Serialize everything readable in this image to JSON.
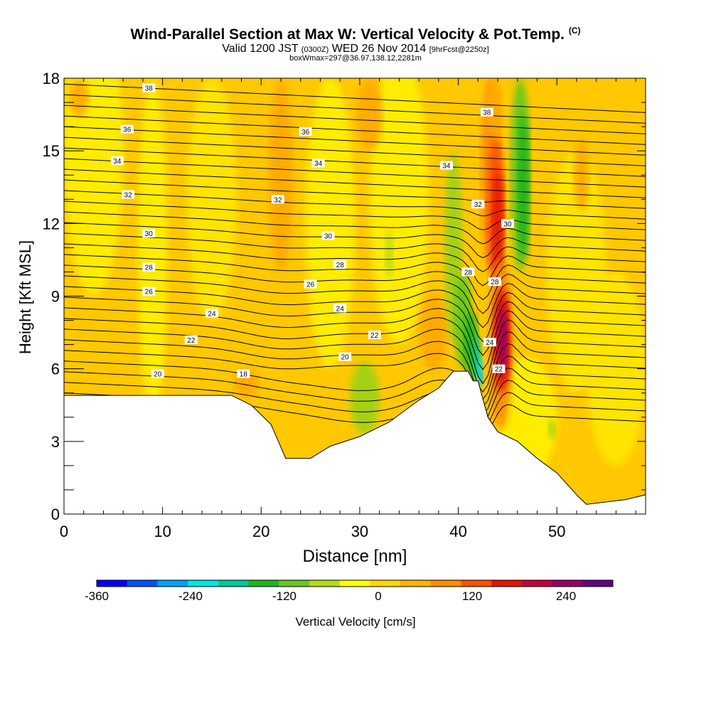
{
  "header": {
    "title": "Wind-Parallel Section at Max W: Vertical Velocity & Pot.Temp.",
    "title_suffix": "(C)",
    "subtitle_pre": "Valid 1200 JST",
    "subtitle_utc": "(0300Z)",
    "subtitle_date": "WED 26 Nov 2014",
    "subtitle_fcst": "[9hrFcst@2250z]",
    "subtitle2": "boxWmax=297@36.97,138.12,2281m"
  },
  "chart_data": {
    "type": "heatmap",
    "xlabel": "Distance [nm]",
    "ylabel": "Height [Kft MSL]",
    "xlim": [
      0,
      59
    ],
    "ylim": [
      0,
      18
    ],
    "xticks": [
      0,
      10,
      20,
      30,
      40,
      50
    ],
    "yticks": [
      0,
      3,
      6,
      9,
      12,
      15,
      18
    ],
    "colorbar": {
      "label": "Vertical Velocity [cm/s]",
      "ticks": [
        -360,
        -240,
        -120,
        0,
        120,
        240
      ],
      "range": [
        -360,
        300
      ],
      "colors": [
        "#0000ff",
        "#0050ff",
        "#00a0ff",
        "#00e6e6",
        "#00c896",
        "#1eb41e",
        "#64c81e",
        "#b4dc14",
        "#ffff00",
        "#ffd700",
        "#ffb400",
        "#ff8c00",
        "#ff5000",
        "#e61400",
        "#c8003c",
        "#960064",
        "#640082"
      ]
    },
    "terrain_kft": [
      [
        0,
        4.9
      ],
      [
        10,
        4.9
      ],
      [
        13,
        4.9
      ],
      [
        17,
        4.9
      ],
      [
        19,
        4.5
      ],
      [
        21,
        3.7
      ],
      [
        22.5,
        2.3
      ],
      [
        25,
        2.3
      ],
      [
        27,
        2.8
      ],
      [
        30,
        3.2
      ],
      [
        33,
        3.8
      ],
      [
        36,
        4.7
      ],
      [
        38,
        5.2
      ],
      [
        39.5,
        5.9
      ],
      [
        41,
        5.9
      ],
      [
        41.5,
        5.5
      ],
      [
        42,
        5.5
      ],
      [
        43,
        4.0
      ],
      [
        44,
        3.4
      ],
      [
        46,
        3.0
      ],
      [
        48,
        2.3
      ],
      [
        50,
        1.7
      ],
      [
        52,
        0.8
      ],
      [
        53,
        0.4
      ],
      [
        55,
        0.5
      ],
      [
        57,
        0.6
      ],
      [
        59,
        0.8
      ]
    ],
    "updraft_max_cm_s": 297,
    "theta_isotherms_c": [
      18,
      20,
      22,
      24,
      26,
      28,
      30,
      32,
      34,
      36,
      38
    ],
    "theta_labels": [
      {
        "text": "38",
        "x": 8.6,
        "y": 17.6
      },
      {
        "text": "36",
        "x": 6.4,
        "y": 15.9
      },
      {
        "text": "36",
        "x": 24.5,
        "y": 15.8
      },
      {
        "text": "38",
        "x": 42.9,
        "y": 16.6
      },
      {
        "text": "34",
        "x": 5.4,
        "y": 14.6
      },
      {
        "text": "34",
        "x": 25.8,
        "y": 14.5
      },
      {
        "text": "34",
        "x": 38.8,
        "y": 14.4
      },
      {
        "text": "32",
        "x": 6.5,
        "y": 13.2
      },
      {
        "text": "32",
        "x": 21.7,
        "y": 13.0
      },
      {
        "text": "32",
        "x": 42.0,
        "y": 12.8
      },
      {
        "text": "30",
        "x": 8.6,
        "y": 11.6
      },
      {
        "text": "30",
        "x": 26.8,
        "y": 11.5
      },
      {
        "text": "30",
        "x": 45.0,
        "y": 12.0
      },
      {
        "text": "28",
        "x": 8.6,
        "y": 10.2
      },
      {
        "text": "28",
        "x": 28.0,
        "y": 10.3
      },
      {
        "text": "28",
        "x": 41.0,
        "y": 10.0
      },
      {
        "text": "28",
        "x": 43.7,
        "y": 9.6
      },
      {
        "text": "26",
        "x": 8.6,
        "y": 9.2
      },
      {
        "text": "26",
        "x": 25.0,
        "y": 9.5
      },
      {
        "text": "24",
        "x": 15.0,
        "y": 8.3
      },
      {
        "text": "24",
        "x": 28.0,
        "y": 8.5
      },
      {
        "text": "24",
        "x": 43.2,
        "y": 7.1
      },
      {
        "text": "22",
        "x": 12.9,
        "y": 7.2
      },
      {
        "text": "22",
        "x": 31.5,
        "y": 7.4
      },
      {
        "text": "22",
        "x": 44.1,
        "y": 6.0
      },
      {
        "text": "20",
        "x": 9.5,
        "y": 5.8
      },
      {
        "text": "20",
        "x": 28.5,
        "y": 6.5
      },
      {
        "text": "18",
        "x": 18.2,
        "y": 5.8
      }
    ]
  }
}
